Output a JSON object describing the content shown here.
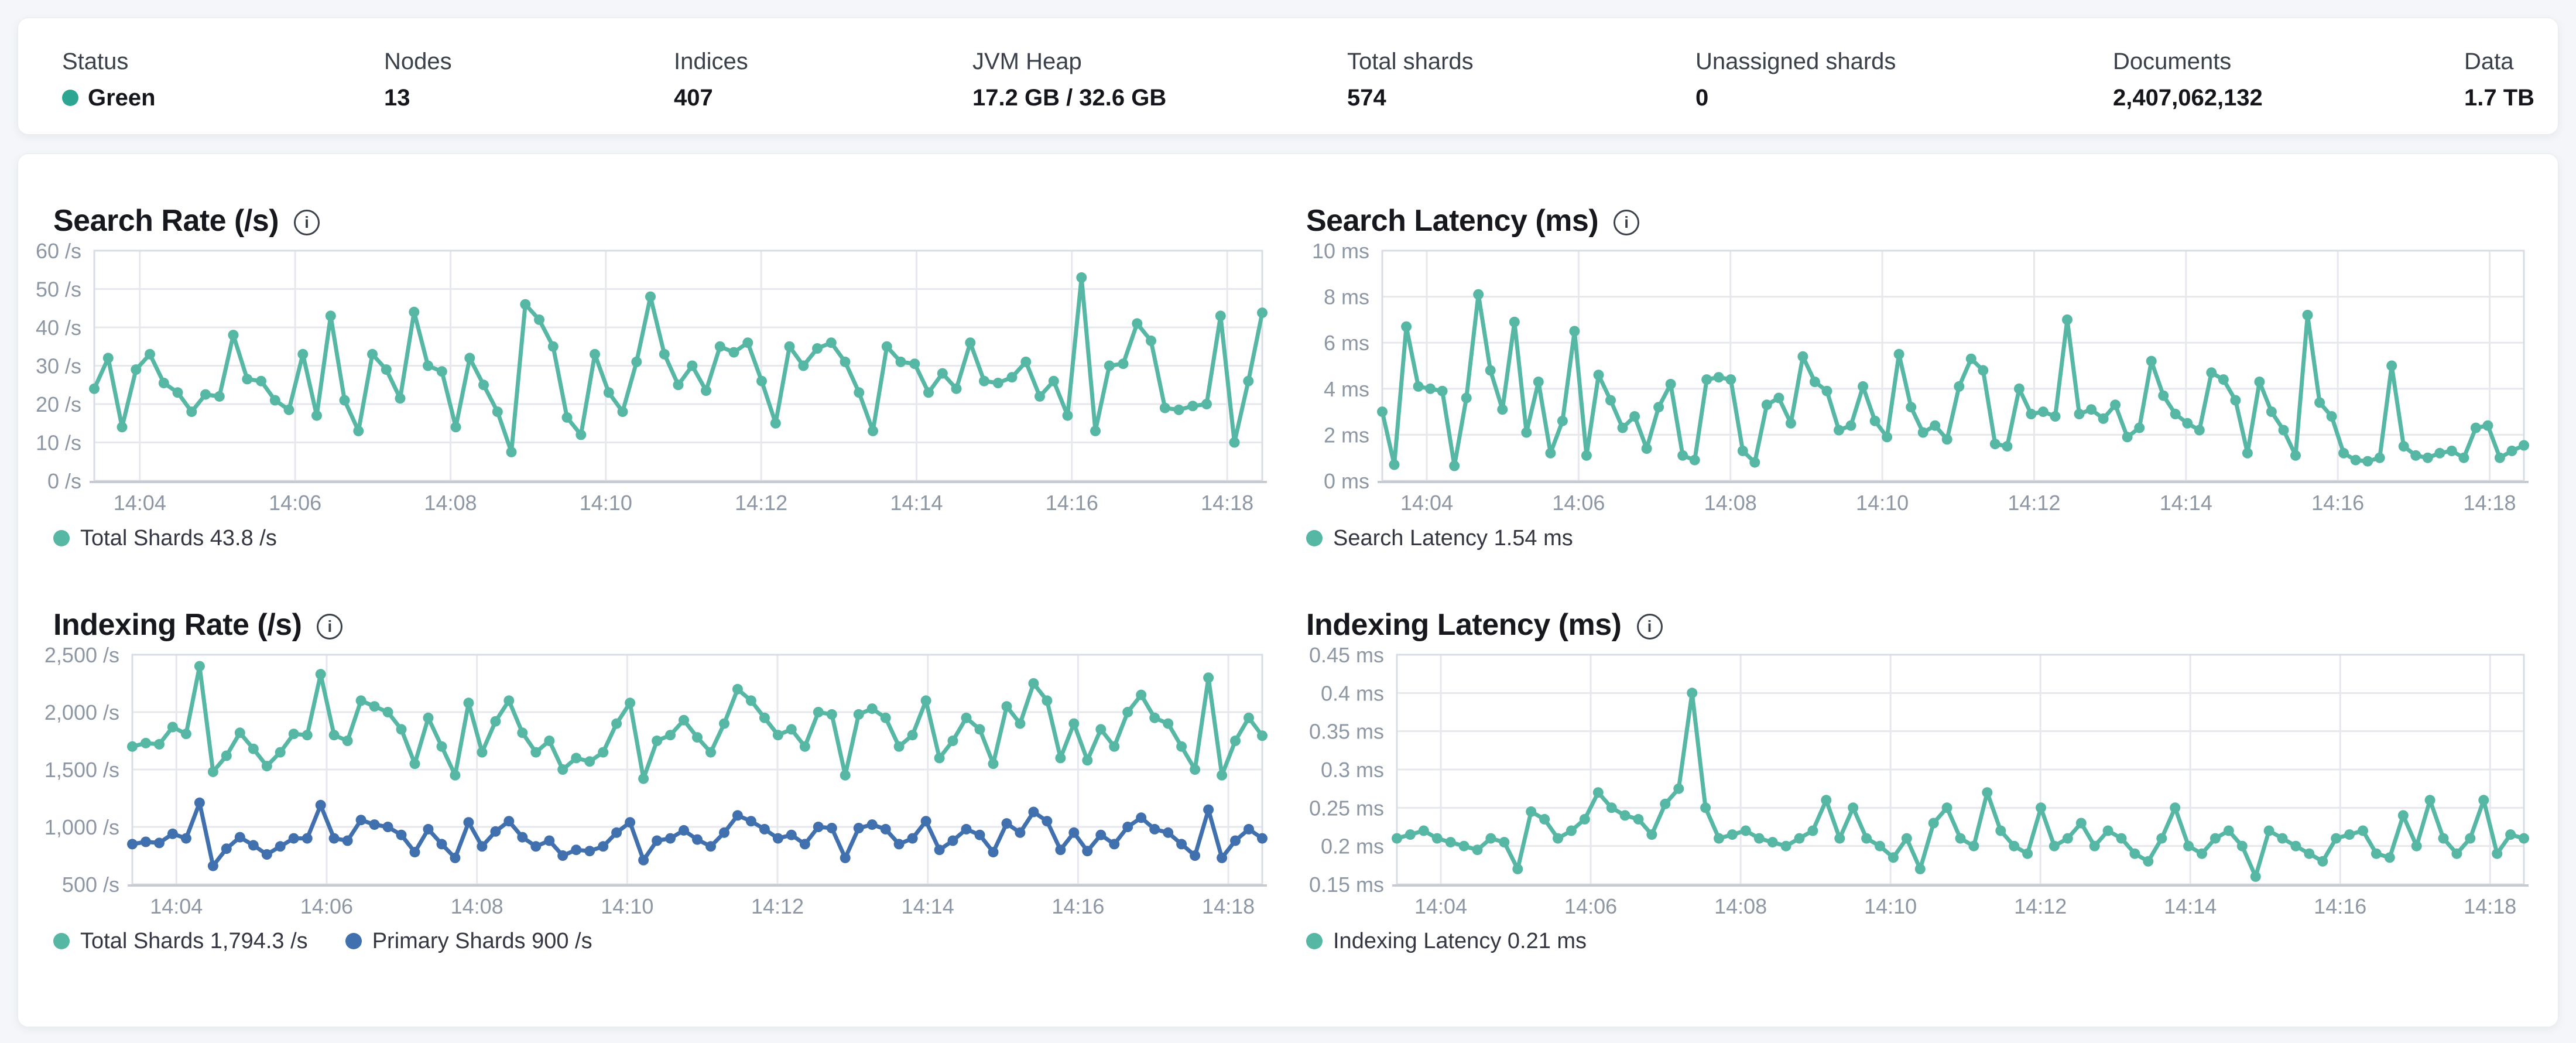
{
  "theme": {
    "teal": "#55b7a4",
    "blue": "#4170ae",
    "status_green": "#2da593",
    "grid": "#e6e8ed",
    "border": "#d8dce3",
    "axis_bottom": "#c6cbd3",
    "axis_text": "#8d97a4"
  },
  "header": {
    "stats": [
      {
        "label": "Status",
        "value": "Green",
        "has_dot": true
      },
      {
        "label": "Nodes",
        "value": "13"
      },
      {
        "label": "Indices",
        "value": "407"
      },
      {
        "label": "JVM Heap",
        "value": "17.2 GB / 32.6 GB"
      },
      {
        "label": "Total shards",
        "value": "574"
      },
      {
        "label": "Unassigned shards",
        "value": "0"
      },
      {
        "label": "Documents",
        "value": "2,407,062,132"
      },
      {
        "label": "Data",
        "value": "1.7 TB"
      }
    ]
  },
  "charts": [
    {
      "id": "search-rate",
      "title": "Search Rate (/s)",
      "info_icon": "i",
      "legend": [
        {
          "label": "Total Shards 43.8 /s",
          "color": "#55b7a4"
        }
      ],
      "chart_data": {
        "type": "line",
        "title": "Search Rate (/s)",
        "xlabel": "time",
        "ylabel": "/s",
        "ylim": [
          0,
          60
        ],
        "grid": true,
        "legend_position": "bottom",
        "yticks": [
          {
            "v": 0,
            "label": "0 /s"
          },
          {
            "v": 10,
            "label": "10 /s"
          },
          {
            "v": 20,
            "label": "20 /s"
          },
          {
            "v": 30,
            "label": "30 /s"
          },
          {
            "v": 40,
            "label": "40 /s"
          },
          {
            "v": 50,
            "label": "50 /s"
          },
          {
            "v": 60,
            "label": "60 /s"
          }
        ],
        "xticks": [
          {
            "f": 0.039,
            "label": "14:04"
          },
          {
            "f": 0.172,
            "label": "14:06"
          },
          {
            "f": 0.305,
            "label": "14:08"
          },
          {
            "f": 0.438,
            "label": "14:10"
          },
          {
            "f": 0.571,
            "label": "14:12"
          },
          {
            "f": 0.704,
            "label": "14:14"
          },
          {
            "f": 0.837,
            "label": "14:16"
          },
          {
            "f": 0.97,
            "label": "14:18"
          }
        ],
        "series": [
          {
            "name": "Total Shards",
            "current": "43.8 /s",
            "color": "#55b7a4",
            "values": [
              24,
              32,
              14,
              29,
              33,
              25.5,
              23,
              18,
              22.5,
              22,
              38,
              26.5,
              26,
              21,
              18.5,
              33,
              17,
              43,
              21,
              13,
              33,
              29,
              21.5,
              44,
              30,
              28.5,
              14,
              32,
              25,
              18,
              7.5,
              46,
              42,
              35,
              16.5,
              12,
              33,
              23,
              18,
              31,
              48,
              33,
              25,
              30,
              23.5,
              35,
              33.5,
              36,
              26,
              15,
              35,
              30,
              34.5,
              36,
              31,
              23,
              13,
              35,
              31,
              30.5,
              23,
              28,
              24,
              36,
              26,
              25.5,
              27,
              31,
              22,
              26,
              17,
              53,
              13,
              30,
              30.5,
              41,
              36.5,
              19,
              18.5,
              19.5,
              20,
              43,
              10,
              26,
              43.8
            ]
          }
        ]
      }
    },
    {
      "id": "search-latency",
      "title": "Search Latency (ms)",
      "info_icon": "i",
      "legend": [
        {
          "label": "Search Latency 1.54 ms",
          "color": "#55b7a4"
        }
      ],
      "chart_data": {
        "type": "line",
        "title": "Search Latency (ms)",
        "xlabel": "time",
        "ylabel": "ms",
        "ylim": [
          0,
          10
        ],
        "grid": true,
        "legend_position": "bottom",
        "yticks": [
          {
            "v": 0,
            "label": "0 ms"
          },
          {
            "v": 2,
            "label": "2 ms"
          },
          {
            "v": 4,
            "label": "4 ms"
          },
          {
            "v": 6,
            "label": "6 ms"
          },
          {
            "v": 8,
            "label": "8 ms"
          },
          {
            "v": 10,
            "label": "10 ms"
          }
        ],
        "xticks": [
          {
            "f": 0.039,
            "label": "14:04"
          },
          {
            "f": 0.172,
            "label": "14:06"
          },
          {
            "f": 0.305,
            "label": "14:08"
          },
          {
            "f": 0.438,
            "label": "14:10"
          },
          {
            "f": 0.571,
            "label": "14:12"
          },
          {
            "f": 0.704,
            "label": "14:14"
          },
          {
            "f": 0.837,
            "label": "14:16"
          },
          {
            "f": 0.97,
            "label": "14:18"
          }
        ],
        "series": [
          {
            "name": "Search Latency",
            "current": "1.54 ms",
            "color": "#55b7a4",
            "values": [
              3,
              0.7,
              6.7,
              4.1,
              4,
              3.9,
              0.65,
              3.6,
              8.1,
              4.8,
              3.1,
              6.9,
              2.1,
              4.3,
              1.2,
              2.6,
              6.5,
              1.1,
              4.6,
              3.5,
              2.3,
              2.8,
              1.4,
              3.2,
              4.2,
              1.1,
              0.9,
              4.4,
              4.5,
              4.4,
              1.3,
              0.8,
              3.3,
              3.6,
              2.5,
              5.4,
              4.3,
              3.9,
              2.2,
              2.4,
              4.1,
              2.6,
              1.9,
              5.5,
              3.2,
              2.1,
              2.4,
              1.8,
              4.1,
              5.3,
              4.8,
              1.6,
              1.5,
              4,
              2.9,
              3,
              2.8,
              7,
              2.9,
              3.1,
              2.7,
              3.3,
              1.9,
              2.3,
              5.2,
              3.7,
              2.9,
              2.5,
              2.2,
              4.7,
              4.4,
              3.5,
              1.2,
              4.3,
              3,
              2.2,
              1.1,
              7.2,
              3.4,
              2.8,
              1.2,
              0.9,
              0.85,
              1,
              5,
              1.5,
              1.1,
              1,
              1.2,
              1.3,
              1,
              2.3,
              2.4,
              1,
              1.3,
              1.54
            ]
          }
        ]
      }
    },
    {
      "id": "indexing-rate",
      "title": "Indexing Rate (/s)",
      "info_icon": "i",
      "legend": [
        {
          "label": "Total Shards 1,794.3 /s",
          "color": "#55b7a4"
        },
        {
          "label": "Primary Shards 900 /s",
          "color": "#4170ae"
        }
      ],
      "chart_data": {
        "type": "line",
        "title": "Indexing Rate (/s)",
        "xlabel": "time",
        "ylabel": "/s",
        "ylim": [
          500,
          2500
        ],
        "grid": true,
        "legend_position": "bottom",
        "yticks": [
          {
            "v": 500,
            "label": "500 /s"
          },
          {
            "v": 1000,
            "label": "1,000 /s"
          },
          {
            "v": 1500,
            "label": "1,500 /s"
          },
          {
            "v": 2000,
            "label": "2,000 /s"
          },
          {
            "v": 2500,
            "label": "2,500 /s"
          }
        ],
        "xticks": [
          {
            "f": 0.039,
            "label": "14:04"
          },
          {
            "f": 0.172,
            "label": "14:06"
          },
          {
            "f": 0.305,
            "label": "14:08"
          },
          {
            "f": 0.438,
            "label": "14:10"
          },
          {
            "f": 0.571,
            "label": "14:12"
          },
          {
            "f": 0.704,
            "label": "14:14"
          },
          {
            "f": 0.837,
            "label": "14:16"
          },
          {
            "f": 0.97,
            "label": "14:18"
          }
        ],
        "series": [
          {
            "name": "Total Shards",
            "current": "1,794.3 /s",
            "color": "#55b7a4",
            "values": [
              1700,
              1730,
              1720,
              1870,
              1810,
              2400,
              1480,
              1620,
              1820,
              1680,
              1530,
              1650,
              1810,
              1800,
              2330,
              1800,
              1750,
              2100,
              2050,
              2000,
              1850,
              1550,
              1950,
              1700,
              1450,
              2080,
              1650,
              1920,
              2100,
              1820,
              1650,
              1750,
              1500,
              1600,
              1570,
              1650,
              1900,
              2080,
              1420,
              1750,
              1800,
              1930,
              1780,
              1650,
              1900,
              2200,
              2100,
              1950,
              1800,
              1850,
              1700,
              2000,
              1980,
              1450,
              1980,
              2030,
              1950,
              1700,
              1800,
              2100,
              1600,
              1750,
              1950,
              1850,
              1550,
              2050,
              1900,
              2250,
              2100,
              1600,
              1900,
              1580,
              1850,
              1700,
              2000,
              2150,
              1950,
              1900,
              1700,
              1500,
              2300,
              1450,
              1750,
              1950,
              1794.3
            ]
          },
          {
            "name": "Primary Shards",
            "current": "900 /s",
            "color": "#4170ae",
            "values": [
              850,
              870,
              860,
              940,
              900,
              1210,
              660,
              810,
              910,
              840,
              760,
              830,
              900,
              900,
              1190,
              900,
              880,
              1060,
              1020,
              1000,
              930,
              780,
              980,
              850,
              730,
              1040,
              830,
              960,
              1050,
              910,
              830,
              880,
              750,
              800,
              790,
              830,
              950,
              1040,
              710,
              880,
              900,
              970,
              890,
              830,
              950,
              1100,
              1050,
              980,
              900,
              930,
              850,
              1000,
              990,
              730,
              990,
              1020,
              980,
              850,
              900,
              1050,
              800,
              880,
              980,
              930,
              780,
              1030,
              950,
              1130,
              1050,
              800,
              950,
              790,
              930,
              850,
              1000,
              1080,
              980,
              950,
              850,
              750,
              1150,
              730,
              880,
              980,
              900
            ]
          }
        ]
      }
    },
    {
      "id": "indexing-latency",
      "title": "Indexing Latency (ms)",
      "info_icon": "i",
      "legend": [
        {
          "label": "Indexing Latency 0.21 ms",
          "color": "#55b7a4"
        }
      ],
      "chart_data": {
        "type": "line",
        "title": "Indexing Latency (ms)",
        "xlabel": "time",
        "ylabel": "ms",
        "ylim": [
          0.15,
          0.45
        ],
        "grid": true,
        "legend_position": "bottom",
        "yticks": [
          {
            "v": 0.15,
            "label": "0.15 ms"
          },
          {
            "v": 0.2,
            "label": "0.2 ms"
          },
          {
            "v": 0.25,
            "label": "0.25 ms"
          },
          {
            "v": 0.3,
            "label": "0.3 ms"
          },
          {
            "v": 0.35,
            "label": "0.35 ms"
          },
          {
            "v": 0.4,
            "label": "0.4 ms"
          },
          {
            "v": 0.45,
            "label": "0.45 ms"
          }
        ],
        "xticks": [
          {
            "f": 0.039,
            "label": "14:04"
          },
          {
            "f": 0.172,
            "label": "14:06"
          },
          {
            "f": 0.305,
            "label": "14:08"
          },
          {
            "f": 0.438,
            "label": "14:10"
          },
          {
            "f": 0.571,
            "label": "14:12"
          },
          {
            "f": 0.704,
            "label": "14:14"
          },
          {
            "f": 0.837,
            "label": "14:16"
          },
          {
            "f": 0.97,
            "label": "14:18"
          }
        ],
        "series": [
          {
            "name": "Indexing Latency",
            "current": "0.21 ms",
            "color": "#55b7a4",
            "values": [
              0.21,
              0.215,
              0.22,
              0.21,
              0.205,
              0.2,
              0.195,
              0.21,
              0.205,
              0.17,
              0.245,
              0.235,
              0.21,
              0.22,
              0.235,
              0.27,
              0.25,
              0.24,
              0.235,
              0.215,
              0.255,
              0.275,
              0.4,
              0.25,
              0.21,
              0.215,
              0.22,
              0.21,
              0.205,
              0.2,
              0.21,
              0.22,
              0.26,
              0.21,
              0.25,
              0.21,
              0.2,
              0.185,
              0.21,
              0.17,
              0.23,
              0.25,
              0.21,
              0.2,
              0.27,
              0.22,
              0.2,
              0.19,
              0.25,
              0.2,
              0.21,
              0.23,
              0.2,
              0.22,
              0.21,
              0.19,
              0.18,
              0.21,
              0.25,
              0.2,
              0.19,
              0.21,
              0.22,
              0.2,
              0.16,
              0.22,
              0.21,
              0.2,
              0.19,
              0.18,
              0.21,
              0.215,
              0.22,
              0.19,
              0.185,
              0.24,
              0.2,
              0.26,
              0.21,
              0.19,
              0.21,
              0.26,
              0.19,
              0.215,
              0.21
            ]
          }
        ]
      }
    }
  ]
}
